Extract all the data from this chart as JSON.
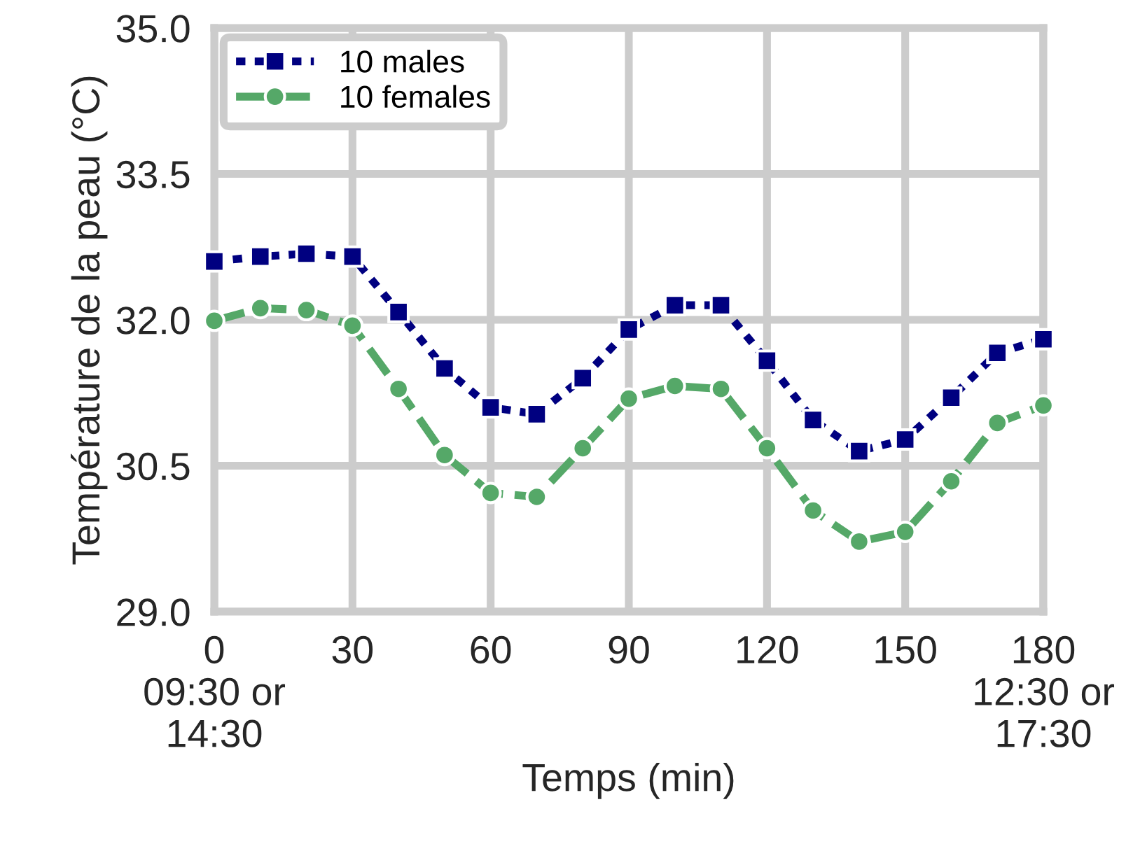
{
  "chart_data": {
    "type": "line",
    "xlabel": "Temps (min)",
    "ylabel": "Température de la peau (°C)",
    "x": [
      0,
      10,
      20,
      30,
      40,
      50,
      60,
      70,
      80,
      90,
      100,
      110,
      120,
      130,
      140,
      150,
      160,
      170,
      180
    ],
    "series": [
      {
        "name": "10 males",
        "color": "#000080",
        "marker": "square",
        "line_style": "dotted",
        "values": [
          32.6,
          32.65,
          32.68,
          32.65,
          32.08,
          31.5,
          31.1,
          31.03,
          31.4,
          31.9,
          32.15,
          32.15,
          31.58,
          30.97,
          30.65,
          30.77,
          31.2,
          31.66,
          31.8
        ]
      },
      {
        "name": "10 females",
        "color": "#55a868",
        "marker": "circle",
        "line_style": "dashed",
        "values": [
          31.99,
          32.12,
          32.1,
          31.94,
          31.29,
          30.61,
          30.22,
          30.18,
          30.68,
          31.19,
          31.32,
          31.29,
          30.68,
          30.04,
          29.72,
          29.82,
          30.34,
          30.94,
          31.12
        ]
      }
    ],
    "xlim": [
      0,
      180
    ],
    "xticks": [
      {
        "value": 0,
        "label": "0\n09:30 or\n14:30"
      },
      30,
      60,
      90,
      120,
      150,
      {
        "value": 180,
        "label": "180\n12:30 or\n17:30"
      }
    ],
    "ylim": [
      29.0,
      35.0
    ],
    "yticks": [
      {
        "value": 29.0,
        "label": "29.0"
      },
      {
        "value": 30.5,
        "label": "30.5"
      },
      {
        "value": 32.0,
        "label": "32.0"
      },
      {
        "value": 33.5,
        "label": "33.5"
      },
      {
        "value": 35.0,
        "label": "35.0"
      }
    ],
    "grid": true,
    "legend": "top left"
  }
}
